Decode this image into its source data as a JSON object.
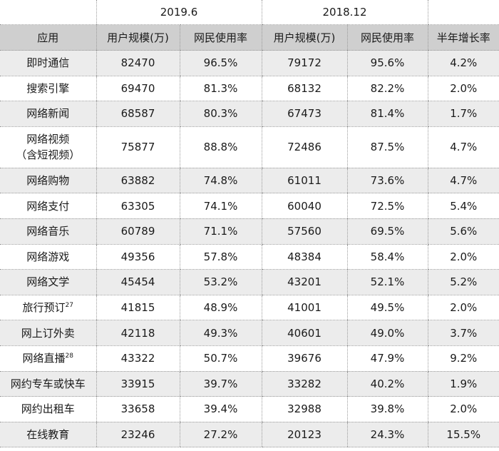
{
  "table": {
    "period_headers": [
      "2019.6",
      "2018.12"
    ],
    "columns": [
      "应用",
      "用户规模(万)",
      "网民使用率",
      "用户规模(万)",
      "网民使用率",
      "半年增长率"
    ],
    "rows": [
      {
        "app": "即时通信",
        "sup": "",
        "u2019": "82470",
        "r2019": "96.5%",
        "u2018": "79172",
        "r2018": "95.6%",
        "growth": "4.2%"
      },
      {
        "app": "搜索引擎",
        "sup": "",
        "u2019": "69470",
        "r2019": "81.3%",
        "u2018": "68132",
        "r2018": "82.2%",
        "growth": "2.0%"
      },
      {
        "app": "网络新闻",
        "sup": "",
        "u2019": "68587",
        "r2019": "80.3%",
        "u2018": "67473",
        "r2018": "81.4%",
        "growth": "1.7%"
      },
      {
        "app": "网络视频",
        "app_line2": "（含短视频）",
        "sup": "",
        "u2019": "75877",
        "r2019": "88.8%",
        "u2018": "72486",
        "r2018": "87.5%",
        "growth": "4.7%"
      },
      {
        "app": "网络购物",
        "sup": "",
        "u2019": "63882",
        "r2019": "74.8%",
        "u2018": "61011",
        "r2018": "73.6%",
        "growth": "4.7%"
      },
      {
        "app": "网络支付",
        "sup": "",
        "u2019": "63305",
        "r2019": "74.1%",
        "u2018": "60040",
        "r2018": "72.5%",
        "growth": "5.4%"
      },
      {
        "app": "网络音乐",
        "sup": "",
        "u2019": "60789",
        "r2019": "71.1%",
        "u2018": "57560",
        "r2018": "69.5%",
        "growth": "5.6%"
      },
      {
        "app": "网络游戏",
        "sup": "",
        "u2019": "49356",
        "r2019": "57.8%",
        "u2018": "48384",
        "r2018": "58.4%",
        "growth": "2.0%"
      },
      {
        "app": "网络文学",
        "sup": "",
        "u2019": "45454",
        "r2019": "53.2%",
        "u2018": "43201",
        "r2018": "52.1%",
        "growth": "5.2%"
      },
      {
        "app": "旅行预订",
        "sup": "27",
        "u2019": "41815",
        "r2019": "48.9%",
        "u2018": "41001",
        "r2018": "49.5%",
        "growth": "2.0%"
      },
      {
        "app": "网上订外卖",
        "sup": "",
        "u2019": "42118",
        "r2019": "49.3%",
        "u2018": "40601",
        "r2018": "49.0%",
        "growth": "3.7%"
      },
      {
        "app": "网络直播",
        "sup": "28",
        "u2019": "43322",
        "r2019": "50.7%",
        "u2018": "39676",
        "r2018": "47.9%",
        "growth": "9.2%"
      },
      {
        "app": "网约专车或快车",
        "sup": "",
        "u2019": "33915",
        "r2019": "39.7%",
        "u2018": "33282",
        "r2018": "40.2%",
        "growth": "1.9%"
      },
      {
        "app": "网约出租车",
        "sup": "",
        "u2019": "33658",
        "r2019": "39.4%",
        "u2018": "32988",
        "r2018": "39.8%",
        "growth": "2.0%"
      },
      {
        "app": "在线教育",
        "sup": "",
        "u2019": "23246",
        "r2019": "27.2%",
        "u2018": "20123",
        "r2018": "24.3%",
        "growth": "15.5%"
      }
    ]
  }
}
